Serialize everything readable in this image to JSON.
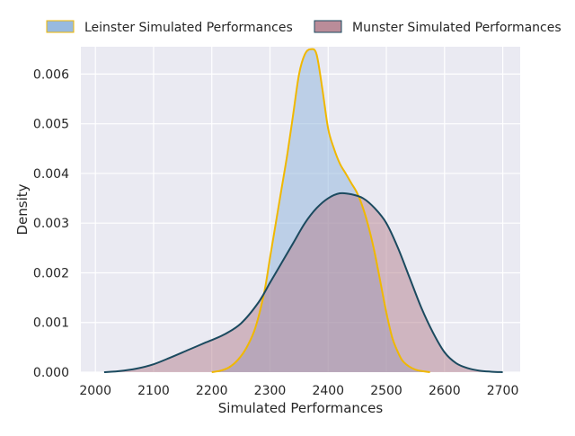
{
  "chart_data": {
    "type": "area",
    "title": "",
    "xlabel": "Simulated Performances",
    "ylabel": "Density",
    "xlim": [
      1975,
      2730
    ],
    "ylim": [
      0,
      0.00655
    ],
    "grid": true,
    "legend_position": "top-center",
    "x_ticks": [
      2000,
      2100,
      2200,
      2300,
      2400,
      2500,
      2600,
      2700
    ],
    "x_tick_labels": [
      "2000",
      "2100",
      "2200",
      "2300",
      "2400",
      "2500",
      "2600",
      "2700"
    ],
    "y_ticks": [
      0,
      0.001,
      0.002,
      0.003,
      0.004,
      0.005,
      0.006
    ],
    "y_tick_labels": [
      "0.000",
      "0.001",
      "0.002",
      "0.003",
      "0.004",
      "0.005",
      "0.006"
    ],
    "series": [
      {
        "name": "Leinster Simulated Performances",
        "fill_color": "#8db3db",
        "line_color": "#f0b800",
        "x": [
          2200,
          2215,
          2230,
          2245,
          2260,
          2275,
          2290,
          2300,
          2310,
          2320,
          2330,
          2340,
          2350,
          2360,
          2370,
          2380,
          2390,
          2400,
          2410,
          2420,
          2430,
          2440,
          2450,
          2460,
          2470,
          2480,
          2490,
          2500,
          2510,
          2520,
          2530,
          2550,
          2575
        ],
        "values": [
          0.0,
          3e-05,
          0.0001,
          0.00025,
          0.0005,
          0.0009,
          0.0016,
          0.0023,
          0.003,
          0.0037,
          0.0044,
          0.0052,
          0.006,
          0.0064,
          0.0065,
          0.0064,
          0.0057,
          0.0049,
          0.0045,
          0.0042,
          0.004,
          0.0038,
          0.0036,
          0.0033,
          0.0029,
          0.0024,
          0.0018,
          0.0012,
          0.0007,
          0.0004,
          0.0002,
          5e-05,
          0.0
        ]
      },
      {
        "name": "Munster Simulated Performances",
        "fill_color": "#b3808e",
        "line_color": "#1b4a5f",
        "x": [
          2015,
          2040,
          2070,
          2100,
          2130,
          2160,
          2190,
          2220,
          2250,
          2280,
          2300,
          2320,
          2340,
          2360,
          2380,
          2400,
          2420,
          2440,
          2460,
          2480,
          2500,
          2520,
          2540,
          2560,
          2580,
          2600,
          2620,
          2640,
          2660,
          2680,
          2700
        ],
        "values": [
          0.0,
          2e-05,
          7e-05,
          0.00016,
          0.0003,
          0.00045,
          0.0006,
          0.00075,
          0.00098,
          0.0014,
          0.0018,
          0.0022,
          0.0026,
          0.003,
          0.0033,
          0.0035,
          0.0036,
          0.00358,
          0.0035,
          0.0033,
          0.003,
          0.0025,
          0.0019,
          0.0013,
          0.0008,
          0.0004,
          0.00018,
          8e-05,
          3e-05,
          1e-05,
          0.0
        ]
      }
    ]
  }
}
